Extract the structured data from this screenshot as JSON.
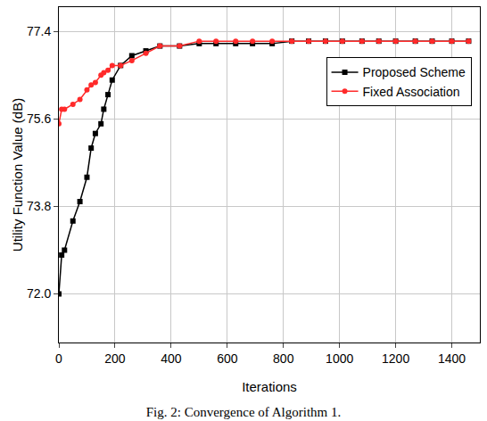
{
  "chart_data": {
    "type": "line",
    "title": "Fig. 2: Convergence of Algorithm 1.",
    "x_label": "Iterations",
    "y_label": "Utility Function Value (dB)",
    "x": [
      0,
      10,
      20,
      50,
      75,
      100,
      115,
      130,
      150,
      160,
      175,
      190,
      220,
      260,
      310,
      360,
      430,
      500,
      560,
      630,
      690,
      760,
      830,
      890,
      950,
      1010,
      1080,
      1140,
      1200,
      1270,
      1330,
      1400,
      1460
    ],
    "series": [
      {
        "name": "Proposed Scheme",
        "color": "#000000",
        "marker": "square",
        "line_style": "solid",
        "values": [
          72.0,
          72.8,
          72.9,
          73.5,
          73.9,
          74.4,
          75.0,
          75.3,
          75.5,
          75.8,
          76.1,
          76.4,
          76.7,
          76.9,
          77.0,
          77.1,
          77.1,
          77.15,
          77.15,
          77.15,
          77.15,
          77.15,
          77.2,
          77.2,
          77.2,
          77.2,
          77.2,
          77.2,
          77.2,
          77.2,
          77.2,
          77.2,
          77.2
        ]
      },
      {
        "name": "Fixed Association",
        "color": "#ff2a2a",
        "marker": "circle",
        "line_style": "solid",
        "values": [
          75.5,
          75.8,
          75.8,
          75.9,
          76.0,
          76.2,
          76.3,
          76.35,
          76.5,
          76.55,
          76.6,
          76.7,
          76.7,
          76.8,
          76.95,
          77.1,
          77.1,
          77.2,
          77.2,
          77.2,
          77.2,
          77.2,
          77.2,
          77.2,
          77.2,
          77.2,
          77.2,
          77.2,
          77.2,
          77.2,
          77.2,
          77.2,
          77.2
        ]
      }
    ],
    "xlim": [
      0,
      1500
    ],
    "xticks": [
      0,
      200,
      400,
      600,
      800,
      1000,
      1200,
      1400
    ],
    "ylim": [
      71.0,
      77.9
    ],
    "yticks": [
      {
        "value": 72,
        "label": "72.0"
      },
      73.8,
      75.6,
      77.4
    ],
    "grid": true,
    "legend": "upper right"
  }
}
